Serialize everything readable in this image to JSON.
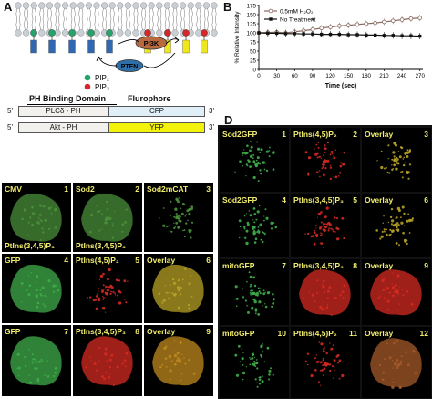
{
  "panelA": {
    "letter": "A",
    "pi3k": "PI3K",
    "pten": "PTEN",
    "legend": [
      "PIP₂",
      "PIP₃"
    ],
    "constructs": {
      "header_left": "PH Binding Domain",
      "header_right": "Flurophore",
      "rows": [
        {
          "five": "5'",
          "domain": "PLCδ - PH",
          "fluor": "CFP",
          "three": "3'",
          "fluor_color": "#dfeef7"
        },
        {
          "five": "5'",
          "domain": "Akt - PH",
          "fluor": "YFP",
          "three": "3'",
          "fluor_color": "#f2f20a"
        }
      ]
    }
  },
  "panelB": {
    "letter": "B",
    "chart_data": {
      "type": "line",
      "xlabel": "Time (sec)",
      "ylabel": "% Relative Intensity",
      "x": [
        0,
        15,
        30,
        45,
        60,
        75,
        90,
        105,
        120,
        135,
        150,
        165,
        180,
        195,
        210,
        225,
        240,
        255,
        270
      ],
      "xticks": [
        "0",
        "30",
        "60",
        "90",
        "120",
        "150",
        "180",
        "210",
        "240",
        "270"
      ],
      "yticks": [
        "0",
        "25",
        "50",
        "75",
        "100",
        "125",
        "150",
        "175"
      ],
      "ylim": [
        0,
        175
      ],
      "xlim": [
        0,
        275
      ],
      "grid": false,
      "legend_position": "top-left",
      "annotation": "*",
      "series": [
        {
          "name": "0.5mM H₂O₂",
          "color": "#8a6a62",
          "values": [
            100,
            101,
            102,
            100,
            103,
            106,
            109,
            113,
            116,
            119,
            121,
            123,
            125,
            127,
            130,
            133,
            136,
            139,
            141
          ]
        },
        {
          "name": "No Treatment",
          "color": "#111111",
          "values": [
            100,
            99,
            99,
            98,
            98,
            97,
            97,
            96,
            96,
            96,
            95,
            95,
            94,
            94,
            93,
            93,
            92,
            92,
            91
          ]
        }
      ]
    }
  },
  "panelC": {
    "letter": "C",
    "tiles": [
      {
        "tl": "CMV",
        "tr": "1",
        "bl": "PtIns(3,4,5)P₃"
      },
      {
        "tl": "Sod2",
        "tr": "2",
        "bl": "PtIns(3,4,5)P₃"
      },
      {
        "tl": "Sod2mCAT",
        "tr": "3",
        "bl": ""
      },
      {
        "tl": "GFP",
        "tr": "4",
        "bl": ""
      },
      {
        "tl": "PtIns(4,5)P₂",
        "tr": "5",
        "bl": ""
      },
      {
        "tl": "Overlay",
        "tr": "6",
        "bl": ""
      },
      {
        "tl": "GFP",
        "tr": "7",
        "bl": ""
      },
      {
        "tl": "PtIns(3,4,5)P₃",
        "tr": "8",
        "bl": ""
      },
      {
        "tl": "Overlay",
        "tr": "9",
        "bl": ""
      }
    ]
  },
  "panelD": {
    "letter": "D",
    "tiles": [
      {
        "tl": "Sod2GFP",
        "tr": "1"
      },
      {
        "tl": "PtIns(4,5)P₂",
        "tr": "2"
      },
      {
        "tl": "Overlay",
        "tr": "3"
      },
      {
        "tl": "Sod2GFP",
        "tr": "4"
      },
      {
        "tl": "PtIns(3,4,5)P₃",
        "tr": "5"
      },
      {
        "tl": "Overlay",
        "tr": "6"
      },
      {
        "tl": "mitoGFP",
        "tr": "7"
      },
      {
        "tl": "PtIns(3,4,5)P₃",
        "tr": "8"
      },
      {
        "tl": "Overlay",
        "tr": "9"
      },
      {
        "tl": "mitoGFP",
        "tr": "10"
      },
      {
        "tl": "PtIns(4,5)P₂",
        "tr": "11"
      },
      {
        "tl": "Overlay",
        "tr": "12"
      }
    ]
  }
}
